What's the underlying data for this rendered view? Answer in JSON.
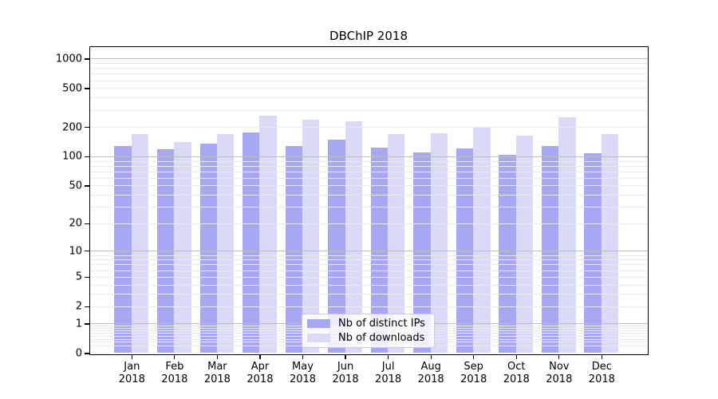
{
  "chart_data": {
    "type": "bar",
    "title": "DBChIP 2018",
    "categories": [
      "Jan",
      "Feb",
      "Mar",
      "Apr",
      "May",
      "Jun",
      "Jul",
      "Aug",
      "Sep",
      "Oct",
      "Nov",
      "Dec"
    ],
    "x_tick_year": "2018",
    "series": [
      {
        "name": "Nb of distinct IPs",
        "color": "#a7a7f3",
        "values": [
          127,
          118,
          135,
          175,
          128,
          148,
          122,
          109,
          120,
          103,
          128,
          107
        ]
      },
      {
        "name": "Nb of downloads",
        "color": "#dadaf8",
        "values": [
          168,
          141,
          170,
          259,
          236,
          228,
          170,
          172,
          199,
          163,
          251,
          169
        ]
      }
    ],
    "yscale": "symlog",
    "yticks": [
      0,
      1,
      2,
      5,
      10,
      20,
      50,
      100,
      200,
      500,
      1000
    ],
    "ylim": [
      0,
      1300
    ],
    "grid": "both",
    "legend_position": "lower center inside plot",
    "colors": {
      "major_grid": "#bdbdbd",
      "minor_grid": "#eaeaea",
      "spine": "#000000",
      "background": "#ffffff",
      "text": "#000000"
    }
  }
}
